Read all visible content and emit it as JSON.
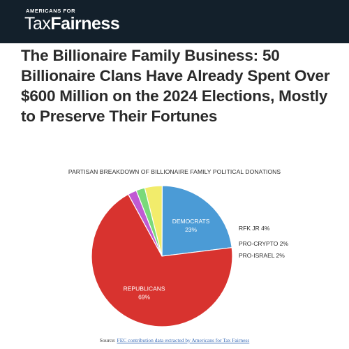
{
  "header": {
    "logo_top": "AMERICANS FOR",
    "logo_tax": "Tax",
    "logo_fairness": "Fairness",
    "background": "#13202b"
  },
  "headline": "The Billionaire Family Business: 50 Billionaire Clans Have Already Spent Over $600 Million on the 2024 Elections, Mostly to Preserve Their Fortunes",
  "chart_data": {
    "type": "pie",
    "title": "PARTISAN BREAKDOWN OF BILLIONAIRE FAMILY POLITICAL DONATIONS",
    "slices": [
      {
        "label": "DEMOCRATS",
        "value": 23,
        "display": "23%",
        "color": "#4b9bd6",
        "label_position": "inside"
      },
      {
        "label": "RFK JR",
        "value": 4,
        "display": "4%",
        "color": "#f2ec6b",
        "label_position": "outside"
      },
      {
        "label": "PRO-CRYPTO",
        "value": 2,
        "display": "2%",
        "color": "#7ad97a",
        "label_position": "outside"
      },
      {
        "label": "PRO-ISRAEL",
        "value": 2,
        "display": "2%",
        "color": "#c05ad3",
        "label_position": "outside"
      },
      {
        "label": "REPUBLICANS",
        "value": 69,
        "display": "69%",
        "color": "#d8332f",
        "label_position": "inside"
      }
    ]
  },
  "source": {
    "prefix": "Source:",
    "link_text": "FEC contribution data extracted by Americans for Tax Fairness"
  }
}
